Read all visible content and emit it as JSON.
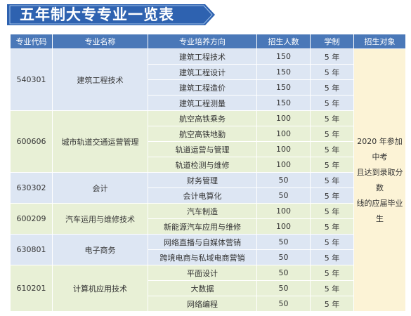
{
  "title": "五年制大专专业一览表",
  "colors": {
    "header": "#4a78b8",
    "banner": "#2e62b0",
    "group_blue": "#dde6f3",
    "group_green": "#e8f0d6",
    "target_bg": "#fcf3d6"
  },
  "headers": [
    "专业代码",
    "专业名称",
    "专业培养方向",
    "招生人数",
    "学制",
    "招生对象"
  ],
  "target_lines": [
    "2020 年参加中考",
    "且达到录取分数",
    "线的应届毕业生"
  ],
  "groups": [
    {
      "code": "540301",
      "name": "建筑工程技术",
      "rows": [
        {
          "direction": "建筑工程技术",
          "enrollment": "150",
          "years": "5 年"
        },
        {
          "direction": "建筑工程设计",
          "enrollment": "150",
          "years": "5 年"
        },
        {
          "direction": "建筑工程造价",
          "enrollment": "150",
          "years": "5 年"
        },
        {
          "direction": "建筑工程测量",
          "enrollment": "150",
          "years": "5 年"
        }
      ]
    },
    {
      "code": "600606",
      "name": "城市轨道交通运营管理",
      "rows": [
        {
          "direction": "航空高铁乘务",
          "enrollment": "100",
          "years": "5 年"
        },
        {
          "direction": "航空高铁地勤",
          "enrollment": "100",
          "years": "5 年"
        },
        {
          "direction": "轨道运营与管理",
          "enrollment": "100",
          "years": "5 年"
        },
        {
          "direction": "轨道检测与维修",
          "enrollment": "100",
          "years": "5 年"
        }
      ]
    },
    {
      "code": "630302",
      "name": "会计",
      "rows": [
        {
          "direction": "财务管理",
          "enrollment": "50",
          "years": "5 年"
        },
        {
          "direction": "会计电算化",
          "enrollment": "50",
          "years": "5 年"
        }
      ]
    },
    {
      "code": "600209",
      "name": "汽车运用与维修技术",
      "rows": [
        {
          "direction": "汽车制造",
          "enrollment": "100",
          "years": "5 年"
        },
        {
          "direction": "新能源汽车应用与维修",
          "enrollment": "100",
          "years": "5 年"
        }
      ]
    },
    {
      "code": "630801",
      "name": "电子商务",
      "rows": [
        {
          "direction": "网络直播与自媒体营销",
          "enrollment": "50",
          "years": "5 年"
        },
        {
          "direction": "跨境电商与私域电商营销",
          "enrollment": "50",
          "years": "5 年"
        }
      ]
    },
    {
      "code": "610201",
      "name": "计算机应用技术",
      "rows": [
        {
          "direction": "平面设计",
          "enrollment": "50",
          "years": "5 年"
        },
        {
          "direction": "大数据",
          "enrollment": "50",
          "years": "5 年"
        },
        {
          "direction": "网络编程",
          "enrollment": "50",
          "years": "5 年"
        }
      ]
    }
  ]
}
